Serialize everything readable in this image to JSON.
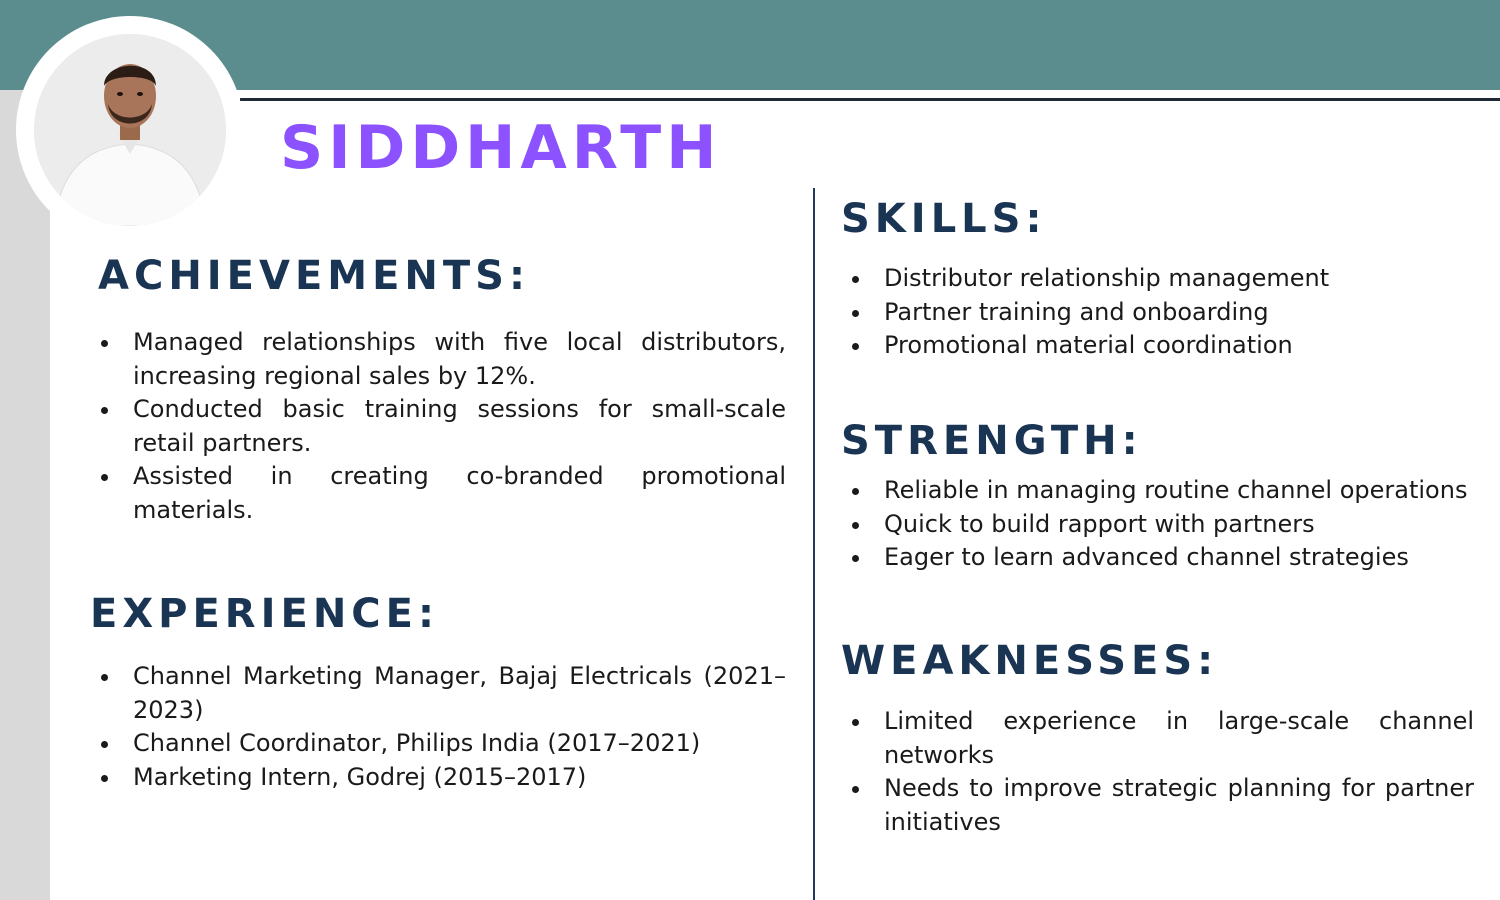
{
  "profile": {
    "name": "SIDDHARTH",
    "photo_alt": "profile photo"
  },
  "colors": {
    "header_bar": "#5b8d8e",
    "name": "#8c52ff",
    "heading": "#1a3553",
    "side_strip": "#d9d9d9"
  },
  "achievements": {
    "heading": "ACHIEVEMENTS:",
    "items": [
      "Managed relationships with five local distributors, increasing regional sales by 12%.",
      "Conducted basic training sessions for small-scale retail partners.",
      "Assisted in creating co-branded promotional materials."
    ]
  },
  "experience": {
    "heading": "EXPERIENCE:",
    "items": [
      "Channel Marketing Manager, Bajaj Electricals (2021–2023)",
      "Channel Coordinator, Philips India (2017–2021)",
      "Marketing Intern, Godrej (2015–2017)"
    ]
  },
  "skills": {
    "heading": "SKILLS:",
    "items": [
      "Distributor relationship management",
      "Partner training and onboarding",
      "Promotional material coordination"
    ]
  },
  "strength": {
    "heading": "STRENGTH:",
    "items": [
      "Reliable in managing routine channel operations",
      "Quick to build rapport with partners",
      "Eager to learn advanced channel strategies"
    ]
  },
  "weaknesses": {
    "heading": "WEAKNESSES:",
    "items": [
      "Limited experience in large-scale channel networks",
      "Needs to improve strategic planning for partner initiatives"
    ]
  }
}
